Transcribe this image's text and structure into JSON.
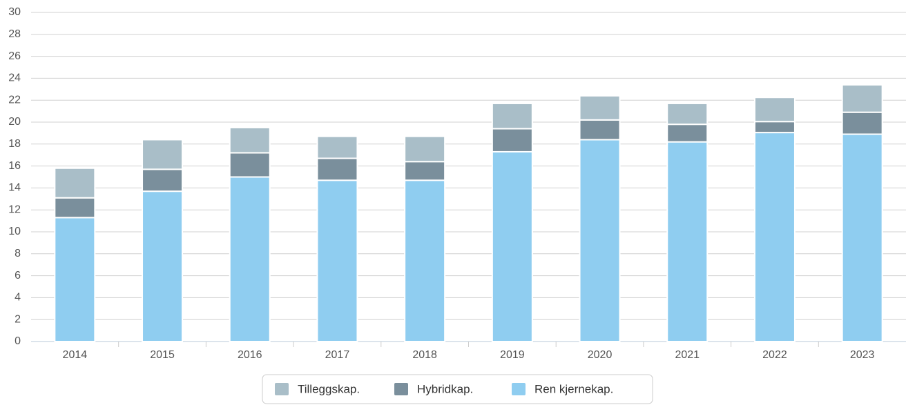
{
  "chart_data": {
    "type": "stacked_bar",
    "categories": [
      "2014",
      "2015",
      "2016",
      "2017",
      "2018",
      "2019",
      "2020",
      "2021",
      "2022",
      "2023"
    ],
    "series": [
      {
        "name": "Tilleggskap.",
        "color": "#a9bec8",
        "values": [
          2.7,
          2.7,
          2.3,
          2.0,
          2.3,
          2.3,
          2.2,
          1.9,
          2.2,
          2.5
        ]
      },
      {
        "name": "Hybridkap.",
        "color": "#7a8f9c",
        "values": [
          1.8,
          2.0,
          2.2,
          2.0,
          1.7,
          2.1,
          1.8,
          1.6,
          1.0,
          2.0
        ]
      },
      {
        "name": "Ren kjernekap.",
        "color": "#8fcdf0",
        "values": [
          11.3,
          13.7,
          15.0,
          14.7,
          14.7,
          17.3,
          18.4,
          18.2,
          19.05,
          18.9
        ]
      }
    ],
    "ylim": [
      0,
      30
    ],
    "yticks": [
      0,
      2,
      4,
      6,
      8,
      10,
      12,
      14,
      16,
      18,
      20,
      22,
      24,
      26,
      28,
      30
    ],
    "grid": true
  }
}
